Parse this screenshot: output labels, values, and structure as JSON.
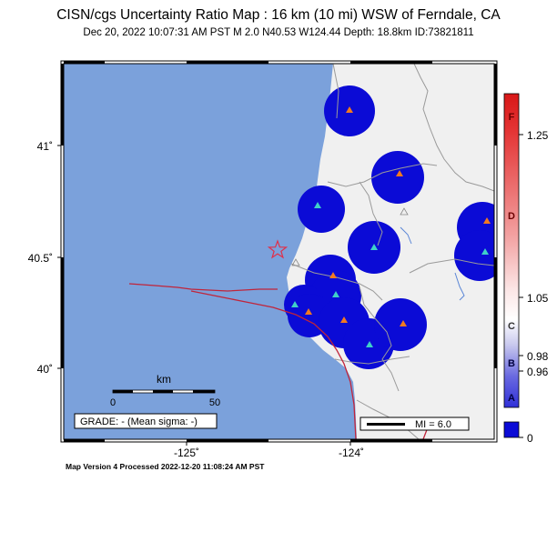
{
  "header": {
    "title": "CISN/cgs Uncertainty Ratio Map : 16 km (10 mi) WSW of Ferndale, CA",
    "subtitle": "Dec 20, 2022 10:07:31 AM PST   M 2.0   N40.53 W124.44   Depth: 18.8km   ID:73821811"
  },
  "axes": {
    "lat_labels": [
      "41˚",
      "40.5˚",
      "40˚"
    ],
    "lon_labels": [
      "-125˚",
      "-124˚"
    ]
  },
  "scale_bar": {
    "unit": "km",
    "min_label": "0",
    "max_label": "50"
  },
  "grade_box": {
    "text": "GRADE: - (Mean sigma: -)"
  },
  "magnitude_legend": {
    "text": "MI = 6.0"
  },
  "colorbar": {
    "values": [
      "1.25",
      "1.05",
      "0.98",
      "0.96",
      "0"
    ],
    "grades": [
      "F",
      "D",
      "C",
      "B",
      "A"
    ]
  },
  "footer": {
    "text": "Map Version 4 Processed 2022-12-20 11:08:24 AM PST"
  },
  "colors": {
    "ocean": "#7ba1db",
    "land": "#f0f0f0",
    "uncertainty_blue": "#0b0bd6",
    "fault": "#c0243a",
    "epicenter": "#e0304a",
    "station_orange": "#f27a20",
    "station_cyan": "#3fd0c8"
  }
}
